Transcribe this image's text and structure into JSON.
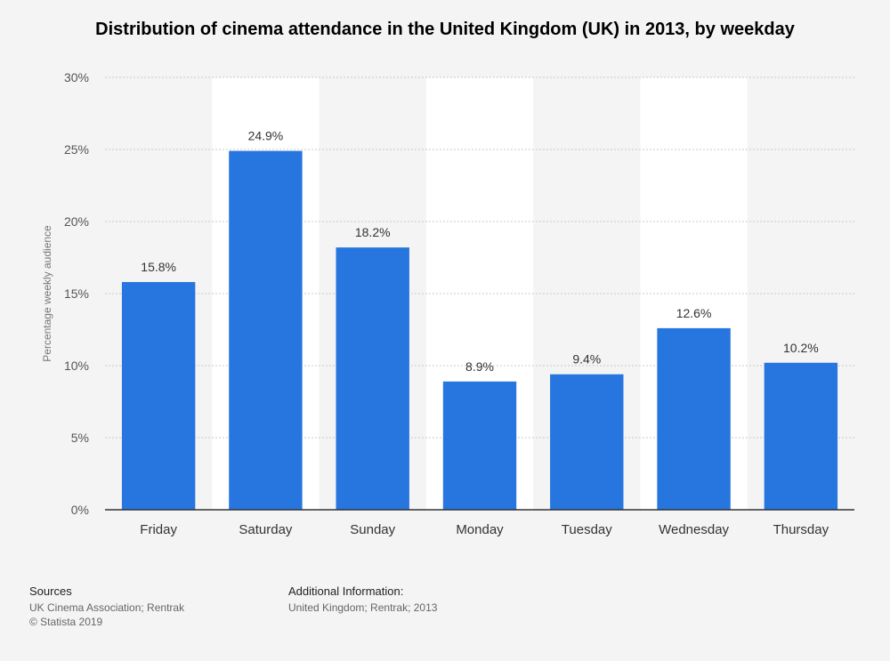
{
  "chart_data": {
    "type": "bar",
    "title": "Distribution of cinema attendance in the United Kingdom (UK) in 2013, by weekday",
    "ylabel": "Percentage weekly audience",
    "xlabel": "",
    "categories": [
      "Friday",
      "Saturday",
      "Sunday",
      "Monday",
      "Tuesday",
      "Wednesday",
      "Thursday"
    ],
    "values": [
      15.8,
      24.9,
      18.2,
      8.9,
      9.4,
      12.6,
      10.2
    ],
    "value_labels": [
      "15.8%",
      "24.9%",
      "18.2%",
      "8.9%",
      "9.4%",
      "12.6%",
      "10.2%"
    ],
    "ylim": [
      0,
      30
    ],
    "yticks": [
      0,
      5,
      10,
      15,
      20,
      25,
      30
    ],
    "ytick_labels": [
      "0%",
      "5%",
      "10%",
      "15%",
      "20%",
      "25%",
      "30%"
    ],
    "grid": true,
    "legend": "none",
    "bar_color": "#2775de",
    "band_color": "#ffffff"
  },
  "footer": {
    "sources_heading": "Sources",
    "sources_line1": "UK Cinema Association; Rentrak",
    "sources_line2": "© Statista 2019",
    "info_heading": "Additional Information:",
    "info_line1": "United Kingdom; Rentrak; 2013"
  }
}
